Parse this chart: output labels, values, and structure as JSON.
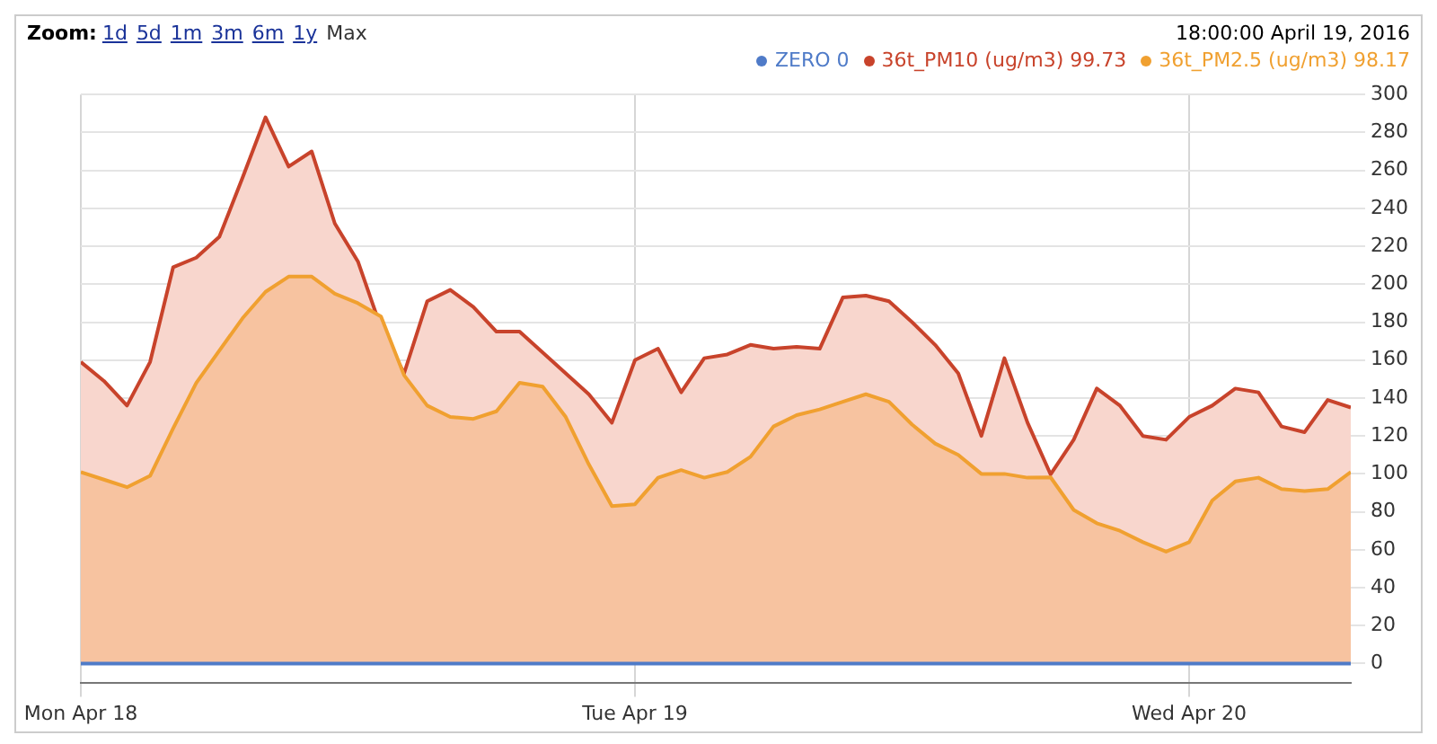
{
  "chart_data": {
    "type": "area",
    "annotations": [
      "Zoom:",
      "1d",
      "5d",
      "1m",
      "3m",
      "6m",
      "1y",
      "Max",
      "18:00:00 April 19, 2016"
    ],
    "x": [
      "2016-04-18T00:00",
      "2016-04-18T01:00",
      "2016-04-18T02:00",
      "2016-04-18T03:00",
      "2016-04-18T04:00",
      "2016-04-18T05:00",
      "2016-04-18T06:00",
      "2016-04-18T07:00",
      "2016-04-18T08:00",
      "2016-04-18T09:00",
      "2016-04-18T10:00",
      "2016-04-18T11:00",
      "2016-04-18T12:00",
      "2016-04-18T13:00",
      "2016-04-18T14:00",
      "2016-04-18T15:00",
      "2016-04-18T16:00",
      "2016-04-18T17:00",
      "2016-04-18T18:00",
      "2016-04-18T19:00",
      "2016-04-18T20:00",
      "2016-04-18T21:00",
      "2016-04-18T22:00",
      "2016-04-18T23:00",
      "2016-04-19T00:00",
      "2016-04-19T01:00",
      "2016-04-19T02:00",
      "2016-04-19T03:00",
      "2016-04-19T04:00",
      "2016-04-19T05:00",
      "2016-04-19T06:00",
      "2016-04-19T07:00",
      "2016-04-19T08:00",
      "2016-04-19T09:00",
      "2016-04-19T10:00",
      "2016-04-19T11:00",
      "2016-04-19T12:00",
      "2016-04-19T13:00",
      "2016-04-19T14:00",
      "2016-04-19T15:00",
      "2016-04-19T16:00",
      "2016-04-19T17:00",
      "2016-04-19T18:00",
      "2016-04-19T19:00",
      "2016-04-19T20:00",
      "2016-04-19T21:00",
      "2016-04-19T22:00",
      "2016-04-19T23:00",
      "2016-04-20T00:00",
      "2016-04-20T01:00",
      "2016-04-20T02:00",
      "2016-04-20T03:00",
      "2016-04-20T04:00",
      "2016-04-20T05:00",
      "2016-04-20T06:00",
      "2016-04-20T07:00"
    ],
    "series": [
      {
        "name": "ZERO 0",
        "type": "line",
        "color": "#4f7bc8",
        "values": [
          0,
          0,
          0,
          0,
          0,
          0,
          0,
          0,
          0,
          0,
          0,
          0,
          0,
          0,
          0,
          0,
          0,
          0,
          0,
          0,
          0,
          0,
          0,
          0,
          0,
          0,
          0,
          0,
          0,
          0,
          0,
          0,
          0,
          0,
          0,
          0,
          0,
          0,
          0,
          0,
          0,
          0,
          0,
          0,
          0,
          0,
          0,
          0,
          0,
          0,
          0,
          0,
          0,
          0,
          0,
          0
        ]
      },
      {
        "name": "36t_PM10 (ug/m3) 99.73",
        "type": "area",
        "color": "#c8432b",
        "values": [
          159,
          149,
          136,
          159,
          209,
          214,
          225,
          256,
          288,
          262,
          270,
          232,
          212,
          177,
          153,
          191,
          197,
          188,
          175,
          175,
          164,
          153,
          142,
          127,
          160,
          166,
          143,
          161,
          163,
          168,
          166,
          167,
          166,
          193,
          194,
          191,
          180,
          168,
          153,
          120,
          161,
          127,
          99.73,
          118,
          145,
          136,
          120,
          118,
          130,
          136,
          145,
          143,
          125,
          122,
          139,
          135
        ]
      },
      {
        "name": "36t_PM2.5 (ug/m3) 98.17",
        "type": "area",
        "color": "#f0a030",
        "values": [
          101,
          97,
          93,
          99,
          124,
          148,
          165,
          182,
          196,
          204,
          204,
          195,
          190,
          183,
          152,
          136,
          130,
          129,
          133,
          148,
          146,
          130,
          105,
          83,
          84,
          98,
          102,
          98,
          101,
          109,
          125,
          131,
          134,
          138,
          142,
          138,
          126,
          116,
          110,
          100,
          100,
          98,
          98.17,
          81,
          74,
          70,
          64,
          59,
          64,
          86,
          96,
          98,
          92,
          91,
          92,
          101
        ]
      }
    ],
    "xlim": [
      "2016-04-18T00:00",
      "2016-04-20T07:00"
    ],
    "xticks": [
      {
        "value": "2016-04-18",
        "label": "Mon Apr 18"
      },
      {
        "value": "2016-04-19",
        "label": "Tue Apr 19"
      },
      {
        "value": "2016-04-20",
        "label": "Wed Apr 20"
      }
    ],
    "ylim": [
      -10,
      300
    ],
    "yticks": [
      0,
      20,
      40,
      60,
      80,
      100,
      120,
      140,
      160,
      180,
      200,
      220,
      240,
      260,
      280,
      300
    ],
    "grid": true,
    "legend": "top right",
    "marker": "none"
  }
}
